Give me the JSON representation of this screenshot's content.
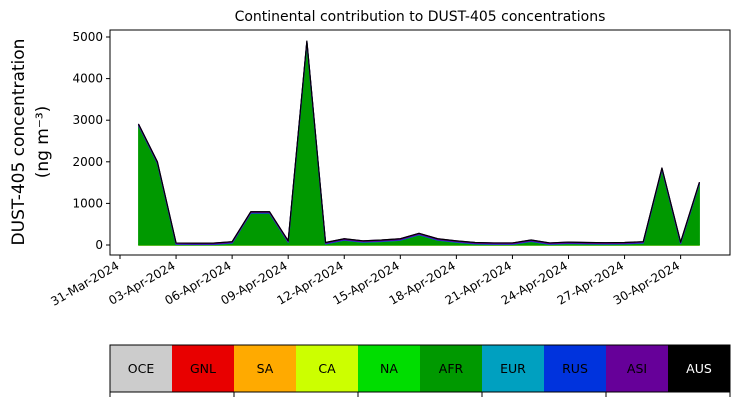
{
  "chart_data": {
    "type": "stacked_area",
    "title": "Continental contribution to DUST-405 concentrations",
    "y_label": [
      "DUST-405 concentration",
      "(ng m⁻³)"
    ],
    "x": [
      "01-Apr-2024",
      "02-Apr-2024",
      "03-Apr-2024",
      "04-Apr-2024",
      "05-Apr-2024",
      "06-Apr-2024",
      "07-Apr-2024",
      "08-Apr-2024",
      "09-Apr-2024",
      "10-Apr-2024",
      "11-Apr-2024",
      "12-Apr-2024",
      "13-Apr-2024",
      "14-Apr-2024",
      "15-Apr-2024",
      "16-Apr-2024",
      "17-Apr-2024",
      "18-Apr-2024",
      "19-Apr-2024",
      "20-Apr-2024",
      "21-Apr-2024",
      "22-Apr-2024",
      "23-Apr-2024",
      "24-Apr-2024",
      "25-Apr-2024",
      "26-Apr-2024",
      "27-Apr-2024",
      "28-Apr-2024",
      "29-Apr-2024",
      "30-Apr-2024",
      "01-May-2024"
    ],
    "xlim": [
      "31-Mar-2024",
      "02-May-2024"
    ],
    "xticks": [
      "31-Mar-2024",
      "03-Apr-2024",
      "06-Apr-2024",
      "09-Apr-2024",
      "12-Apr-2024",
      "15-Apr-2024",
      "18-Apr-2024",
      "21-Apr-2024",
      "24-Apr-2024",
      "27-Apr-2024",
      "30-Apr-2024"
    ],
    "ylim": [
      0,
      5000
    ],
    "yticks": [
      0,
      1000,
      2000,
      3000,
      4000,
      5000
    ],
    "series": [
      {
        "name": "OCE",
        "color": "#cccccc",
        "values": [
          0,
          0,
          0,
          0,
          0,
          0,
          0,
          0,
          0,
          0,
          0,
          0,
          0,
          0,
          0,
          0,
          0,
          0,
          0,
          0,
          0,
          0,
          0,
          0,
          0,
          0,
          0,
          0,
          0,
          0,
          0
        ]
      },
      {
        "name": "GNL",
        "color": "#e80000",
        "values": [
          0,
          0,
          0,
          0,
          0,
          0,
          0,
          0,
          0,
          0,
          0,
          0,
          0,
          0,
          0,
          0,
          0,
          0,
          0,
          0,
          0,
          0,
          0,
          0,
          0,
          0,
          0,
          0,
          0,
          0,
          0
        ]
      },
      {
        "name": "SA",
        "color": "#ffaa00",
        "values": [
          0,
          0,
          0,
          0,
          0,
          0,
          0,
          0,
          0,
          0,
          0,
          0,
          0,
          0,
          0,
          0,
          0,
          0,
          0,
          0,
          0,
          0,
          0,
          0,
          0,
          0,
          0,
          0,
          0,
          0,
          0
        ]
      },
      {
        "name": "CA",
        "color": "#ccff00",
        "values": [
          0,
          0,
          0,
          0,
          0,
          0,
          0,
          0,
          0,
          0,
          0,
          0,
          0,
          0,
          0,
          0,
          0,
          0,
          0,
          0,
          0,
          0,
          0,
          0,
          0,
          0,
          0,
          0,
          0,
          0,
          0
        ]
      },
      {
        "name": "NA",
        "color": "#00dd00",
        "values": [
          5,
          5,
          5,
          5,
          5,
          5,
          5,
          5,
          5,
          5,
          5,
          5,
          5,
          5,
          5,
          5,
          5,
          5,
          5,
          5,
          5,
          5,
          5,
          5,
          5,
          5,
          5,
          5,
          5,
          5,
          5
        ]
      },
      {
        "name": "AFR",
        "color": "#009900",
        "values": [
          2860,
          1960,
          10,
          5,
          5,
          40,
          760,
          760,
          60,
          4860,
          20,
          110,
          60,
          80,
          110,
          240,
          110,
          60,
          20,
          10,
          10,
          80,
          10,
          30,
          20,
          15,
          20,
          40,
          1810,
          30,
          1460
        ]
      },
      {
        "name": "EUR",
        "color": "#00a0c0",
        "values": [
          5,
          5,
          5,
          5,
          5,
          5,
          5,
          5,
          5,
          5,
          5,
          5,
          5,
          5,
          5,
          5,
          5,
          5,
          5,
          5,
          5,
          5,
          5,
          5,
          5,
          5,
          5,
          5,
          5,
          5,
          5
        ]
      },
      {
        "name": "RUS",
        "color": "#0033dd",
        "values": [
          10,
          10,
          10,
          10,
          10,
          10,
          10,
          10,
          10,
          10,
          10,
          10,
          10,
          10,
          10,
          10,
          10,
          10,
          10,
          10,
          10,
          10,
          10,
          10,
          10,
          10,
          10,
          10,
          10,
          10,
          10
        ]
      },
      {
        "name": "ASI",
        "color": "#660099",
        "values": [
          20,
          20,
          20,
          20,
          20,
          20,
          20,
          20,
          20,
          20,
          20,
          20,
          20,
          20,
          20,
          20,
          20,
          20,
          20,
          20,
          20,
          20,
          20,
          20,
          20,
          20,
          20,
          20,
          20,
          20,
          20
        ]
      },
      {
        "name": "AUS",
        "color": "#000000",
        "values": [
          0,
          0,
          0,
          0,
          0,
          0,
          0,
          0,
          0,
          0,
          0,
          0,
          0,
          0,
          0,
          0,
          0,
          0,
          0,
          0,
          0,
          0,
          0,
          0,
          0,
          0,
          0,
          0,
          0,
          0,
          0
        ]
      }
    ]
  }
}
